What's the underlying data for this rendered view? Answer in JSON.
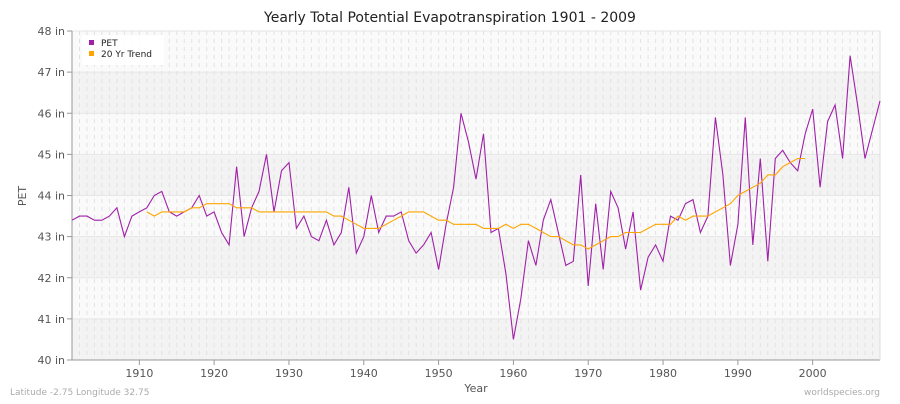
{
  "chart_data": {
    "type": "line",
    "title": "Yearly Total Potential Evapotranspiration 1901 - 2009",
    "xlabel": "Year",
    "ylabel": "PET",
    "xlim": [
      1901,
      2009
    ],
    "ylim": [
      40,
      48
    ],
    "y_unit": "in",
    "x_ticks": [
      1910,
      1920,
      1930,
      1940,
      1950,
      1960,
      1970,
      1980,
      1990,
      2000
    ],
    "y_ticks": [
      "40 in",
      "41 in",
      "42 in",
      "43 in",
      "44 in",
      "45 in",
      "46 in",
      "47 in",
      "48 in"
    ],
    "grid": true,
    "legend_position": "top-left",
    "series": [
      {
        "name": "PET",
        "color": "#a020a8",
        "x_start": 1901,
        "values": [
          43.4,
          43.5,
          43.5,
          43.4,
          43.4,
          43.5,
          43.7,
          43.0,
          43.5,
          43.6,
          43.7,
          44.0,
          44.1,
          43.6,
          43.5,
          43.6,
          43.7,
          44.0,
          43.5,
          43.6,
          43.1,
          42.8,
          44.7,
          43.0,
          43.7,
          44.1,
          45.0,
          43.6,
          44.6,
          44.8,
          43.2,
          43.5,
          43.0,
          42.9,
          43.4,
          42.8,
          43.1,
          44.2,
          42.6,
          43.0,
          44.0,
          43.1,
          43.5,
          43.5,
          43.6,
          42.9,
          42.6,
          42.8,
          43.1,
          42.2,
          43.3,
          44.2,
          46.0,
          45.3,
          44.4,
          45.5,
          43.1,
          43.2,
          42.1,
          40.5,
          41.5,
          42.9,
          42.3,
          43.4,
          43.9,
          43.1,
          42.3,
          42.4,
          44.5,
          41.8,
          43.8,
          42.2,
          44.1,
          43.7,
          42.7,
          43.6,
          41.7,
          42.5,
          42.8,
          42.4,
          43.5,
          43.4,
          43.8,
          43.9,
          43.1,
          43.5,
          45.9,
          44.5,
          42.3,
          43.3,
          45.9,
          42.8,
          44.9,
          42.4,
          44.9,
          45.1,
          44.8,
          44.6,
          45.5,
          46.1,
          44.2,
          45.8,
          46.2,
          44.9,
          47.4,
          46.2,
          44.9,
          45.6,
          46.3
        ]
      },
      {
        "name": "20 Yr Trend",
        "color": "#ffa500",
        "x_start": 1911,
        "values": [
          43.6,
          43.5,
          43.6,
          43.6,
          43.6,
          43.6,
          43.7,
          43.7,
          43.8,
          43.8,
          43.8,
          43.8,
          43.7,
          43.7,
          43.7,
          43.6,
          43.6,
          43.6,
          43.6,
          43.6,
          43.6,
          43.6,
          43.6,
          43.6,
          43.6,
          43.5,
          43.5,
          43.4,
          43.3,
          43.2,
          43.2,
          43.2,
          43.3,
          43.4,
          43.5,
          43.6,
          43.6,
          43.6,
          43.5,
          43.4,
          43.4,
          43.3,
          43.3,
          43.3,
          43.3,
          43.2,
          43.2,
          43.2,
          43.3,
          43.2,
          43.3,
          43.3,
          43.2,
          43.1,
          43.0,
          43.0,
          42.9,
          42.8,
          42.8,
          42.7,
          42.8,
          42.9,
          43.0,
          43.0,
          43.1,
          43.1,
          43.1,
          43.2,
          43.3,
          43.3,
          43.3,
          43.5,
          43.4,
          43.5,
          43.5,
          43.5,
          43.6,
          43.7,
          43.8,
          44.0,
          44.1,
          44.2,
          44.3,
          44.5,
          44.5,
          44.7,
          44.8,
          44.9,
          44.9
        ]
      }
    ]
  },
  "footer": {
    "location": "Latitude -2.75 Longitude 32.75",
    "source": "worldspecies.org"
  }
}
